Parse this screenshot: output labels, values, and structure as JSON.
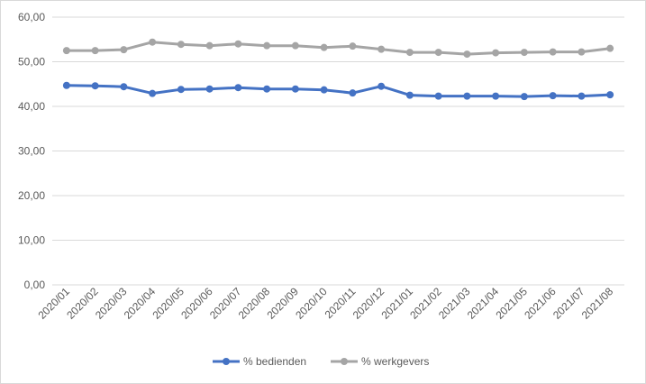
{
  "chart_data": {
    "type": "line",
    "title": "",
    "xlabel": "",
    "ylabel": "",
    "categories": [
      "2020/01",
      "2020/02",
      "2020/03",
      "2020/04",
      "2020/05",
      "2020/06",
      "2020/07",
      "2020/08",
      "2020/09",
      "2020/10",
      "2020/11",
      "2020/12",
      "2021/01",
      "2021/02",
      "2021/03",
      "2021/04",
      "2021/05",
      "2021/06",
      "2021/07",
      "2021/08"
    ],
    "ylim": [
      0,
      60
    ],
    "yticks": [
      "0,00",
      "10,00",
      "20,00",
      "30,00",
      "40,00",
      "50,00",
      "60,00"
    ],
    "ytick_values": [
      0,
      10,
      20,
      30,
      40,
      50,
      60
    ],
    "grid": true,
    "legend_position": "bottom",
    "series": [
      {
        "name": "% bedienden",
        "color": "#4472c4",
        "values": [
          44.7,
          44.6,
          44.4,
          42.9,
          43.8,
          43.9,
          44.2,
          43.9,
          43.9,
          43.7,
          43.0,
          44.5,
          42.5,
          42.3,
          42.3,
          42.3,
          42.2,
          42.4,
          42.3,
          42.6
        ]
      },
      {
        "name": "% werkgevers",
        "color": "#a5a5a5",
        "values": [
          52.5,
          52.5,
          52.7,
          54.4,
          53.9,
          53.6,
          54.0,
          53.6,
          53.6,
          53.2,
          53.5,
          52.8,
          52.1,
          52.1,
          51.7,
          52.0,
          52.1,
          52.2,
          52.2,
          53.0
        ]
      }
    ]
  }
}
